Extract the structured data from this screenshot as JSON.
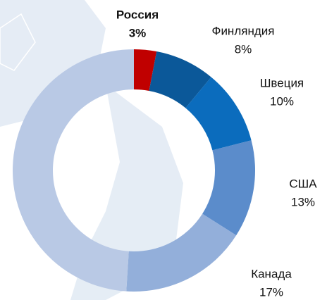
{
  "chart_data": {
    "type": "donut",
    "categories": [
      "Россия",
      "Финляндия",
      "Швеция",
      "США",
      "Канада",
      null
    ],
    "values": [
      3,
      8,
      10,
      13,
      17,
      49
    ],
    "value_labels": [
      "3%",
      "8%",
      "10%",
      "13%",
      "17%",
      null
    ],
    "colors": [
      "#c00000",
      "#0b5899",
      "#0b6cbd",
      "#5b8ccb",
      "#93afda",
      "#b9c9e5"
    ]
  }
}
